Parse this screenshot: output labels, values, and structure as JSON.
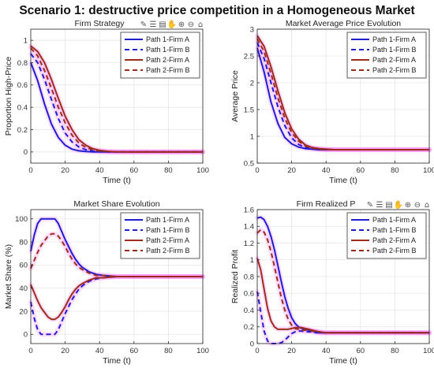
{
  "figure": {
    "suptitle": "Scenario 1: destructive price competition in a Homogeneous Market",
    "toolbar_icons": [
      "brush-icon",
      "datatip-icon",
      "rotate-icon",
      "pan-icon",
      "zoom-in-icon",
      "zoom-out-icon",
      "home-icon"
    ]
  },
  "colors": {
    "path1": "#1f1fd1",
    "path2": "#9b2d1a",
    "axis": "#262626",
    "grid": "#e6e6e6",
    "brush": "#ff66ff"
  },
  "chart_data": [
    {
      "id": "p1",
      "type": "line",
      "title": "Firm Strategy",
      "xlabel": "Time (t)",
      "ylabel": "Proportion High-Price",
      "xlim": [
        0,
        100
      ],
      "ylim": [
        -0.1,
        1.1
      ],
      "xticks": [
        0,
        20,
        40,
        60,
        80,
        100
      ],
      "xtick_labels": [
        "0",
        "20",
        "40",
        "60",
        "80",
        "100"
      ],
      "yticks": [
        0,
        0.2,
        0.4,
        0.6,
        0.8,
        1
      ],
      "ytick_labels": [
        "0",
        "0.2",
        "0.4",
        "0.6",
        "0.8",
        "1"
      ],
      "grid": true,
      "legend_position": "top-right",
      "toolbar": true,
      "series": [
        {
          "name": "Path 1-Firm A",
          "color": "path1",
          "dash": "solid",
          "x": [
            0,
            4,
            8,
            12,
            16,
            20,
            24,
            28,
            32,
            36,
            40,
            45,
            50,
            60,
            70,
            80,
            90,
            100
          ],
          "y": [
            0.8,
            0.64,
            0.43,
            0.25,
            0.13,
            0.06,
            0.025,
            0.01,
            0.004,
            0.001,
            0,
            0,
            0,
            0,
            0,
            0,
            0,
            0
          ]
        },
        {
          "name": "Path 1-Firm B",
          "color": "path1",
          "dash": "dashed",
          "x": [
            0,
            4,
            8,
            12,
            16,
            20,
            24,
            28,
            32,
            36,
            40,
            45,
            50,
            60,
            70,
            80,
            90,
            100
          ],
          "y": [
            0.88,
            0.8,
            0.65,
            0.47,
            0.3,
            0.17,
            0.09,
            0.045,
            0.02,
            0.009,
            0.004,
            0.001,
            0,
            0,
            0,
            0,
            0,
            0
          ]
        },
        {
          "name": "Path 2-Firm A",
          "color": "path2",
          "dash": "solid",
          "x": [
            0,
            4,
            8,
            12,
            16,
            20,
            24,
            28,
            32,
            36,
            40,
            45,
            50,
            60,
            70,
            80,
            90,
            100
          ],
          "y": [
            0.95,
            0.9,
            0.8,
            0.65,
            0.48,
            0.32,
            0.2,
            0.11,
            0.06,
            0.03,
            0.014,
            0.005,
            0.002,
            0,
            0,
            0,
            0,
            0
          ]
        },
        {
          "name": "Path 2-Firm B",
          "color": "path2",
          "dash": "dashed",
          "x": [
            0,
            4,
            8,
            12,
            16,
            20,
            24,
            28,
            32,
            36,
            40,
            45,
            50,
            60,
            70,
            80,
            90,
            100
          ],
          "y": [
            0.93,
            0.86,
            0.73,
            0.57,
            0.4,
            0.26,
            0.15,
            0.08,
            0.04,
            0.02,
            0.009,
            0.003,
            0.001,
            0,
            0,
            0,
            0,
            0
          ]
        }
      ]
    },
    {
      "id": "p2",
      "type": "line",
      "title": "Market Average Price Evolution",
      "xlabel": "Time (t)",
      "ylabel": "Average Price",
      "xlim": [
        0,
        100
      ],
      "ylim": [
        0.5,
        3
      ],
      "xticks": [
        0,
        20,
        40,
        60,
        80,
        100
      ],
      "xtick_labels": [
        "0",
        "20",
        "40",
        "60",
        "80",
        "100"
      ],
      "yticks": [
        0.5,
        1,
        1.5,
        2,
        2.5,
        3
      ],
      "ytick_labels": [
        "0.5",
        "1",
        "1.5",
        "2",
        "2.5",
        "3"
      ],
      "grid": true,
      "legend_position": "top-right",
      "toolbar": false,
      "series": [
        {
          "name": "Path 1-Firm A",
          "color": "path1",
          "dash": "solid",
          "x": [
            0,
            4,
            8,
            12,
            16,
            20,
            24,
            28,
            32,
            36,
            40,
            45,
            50,
            60,
            70,
            80,
            90,
            100
          ],
          "y": [
            2.65,
            2.2,
            1.64,
            1.24,
            0.98,
            0.86,
            0.8,
            0.77,
            0.76,
            0.75,
            0.75,
            0.75,
            0.75,
            0.75,
            0.75,
            0.75,
            0.75,
            0.75
          ]
        },
        {
          "name": "Path 1-Firm B",
          "color": "path1",
          "dash": "dashed",
          "x": [
            0,
            4,
            8,
            12,
            16,
            20,
            24,
            28,
            32,
            36,
            40,
            45,
            50,
            60,
            70,
            80,
            90,
            100
          ],
          "y": [
            2.75,
            2.45,
            2.0,
            1.55,
            1.2,
            0.97,
            0.85,
            0.79,
            0.77,
            0.76,
            0.75,
            0.75,
            0.75,
            0.75,
            0.75,
            0.75,
            0.75,
            0.75
          ]
        },
        {
          "name": "Path 2-Firm A",
          "color": "path2",
          "dash": "solid",
          "x": [
            0,
            4,
            8,
            12,
            16,
            20,
            24,
            28,
            32,
            36,
            40,
            45,
            50,
            60,
            70,
            80,
            90,
            100
          ],
          "y": [
            2.88,
            2.68,
            2.3,
            1.85,
            1.44,
            1.14,
            0.95,
            0.84,
            0.79,
            0.77,
            0.76,
            0.75,
            0.75,
            0.75,
            0.75,
            0.75,
            0.75,
            0.75
          ]
        },
        {
          "name": "Path 2-Firm B",
          "color": "path2",
          "dash": "dashed",
          "x": [
            0,
            4,
            8,
            12,
            16,
            20,
            24,
            28,
            32,
            36,
            40,
            45,
            50,
            60,
            70,
            80,
            90,
            100
          ],
          "y": [
            2.82,
            2.58,
            2.17,
            1.72,
            1.34,
            1.07,
            0.91,
            0.82,
            0.78,
            0.76,
            0.75,
            0.75,
            0.75,
            0.75,
            0.75,
            0.75,
            0.75,
            0.75
          ]
        }
      ]
    },
    {
      "id": "p3",
      "type": "line",
      "title": "Market Share Evolution",
      "xlabel": "Time (t)",
      "ylabel": "Market Share (%)",
      "xlim": [
        0,
        100
      ],
      "ylim": [
        -8,
        108
      ],
      "xticks": [
        0,
        20,
        40,
        60,
        80,
        100
      ],
      "xtick_labels": [
        "0",
        "20",
        "40",
        "60",
        "80",
        "100"
      ],
      "yticks": [
        0,
        20,
        40,
        60,
        80,
        100
      ],
      "ytick_labels": [
        "0",
        "20",
        "40",
        "60",
        "80",
        "100"
      ],
      "grid": true,
      "legend_position": "top-right",
      "toolbar": false,
      "series": [
        {
          "name": "Path 1-Firm A",
          "color": "path1",
          "dash": "solid",
          "x": [
            0,
            2,
            4,
            6,
            8,
            10,
            12,
            14,
            16,
            18,
            20,
            22,
            24,
            26,
            28,
            30,
            34,
            38,
            42,
            50,
            60,
            80,
            100
          ],
          "y": [
            72,
            86,
            96,
            100,
            100,
            100,
            100,
            100,
            96,
            89,
            82,
            76,
            70,
            65,
            61,
            58,
            54,
            52,
            51,
            50,
            50,
            50,
            50
          ]
        },
        {
          "name": "Path 1-Firm B",
          "color": "path1",
          "dash": "dashed",
          "x": [
            0,
            2,
            4,
            6,
            8,
            10,
            12,
            14,
            16,
            18,
            20,
            22,
            24,
            26,
            28,
            30,
            34,
            38,
            42,
            50,
            60,
            80,
            100
          ],
          "y": [
            28,
            14,
            4,
            0,
            0,
            0,
            0,
            0,
            4,
            11,
            18,
            24,
            30,
            35,
            39,
            42,
            46,
            48,
            49,
            50,
            50,
            50,
            50
          ]
        },
        {
          "name": "Path 2-Firm A",
          "color": "path2",
          "dash": "solid",
          "x": [
            0,
            2,
            4,
            6,
            8,
            10,
            12,
            14,
            16,
            18,
            20,
            22,
            24,
            26,
            28,
            30,
            34,
            38,
            42,
            50,
            60,
            80,
            100
          ],
          "y": [
            43,
            36,
            29,
            23,
            19,
            15,
            13,
            13,
            15,
            19,
            24,
            30,
            35,
            39,
            42,
            44,
            47,
            49,
            49,
            50,
            50,
            50,
            50
          ]
        },
        {
          "name": "Path 2-Firm B",
          "color": "path2",
          "dash": "dashed",
          "x": [
            0,
            2,
            4,
            6,
            8,
            10,
            12,
            14,
            16,
            18,
            20,
            22,
            24,
            26,
            28,
            30,
            34,
            38,
            42,
            50,
            60,
            80,
            100
          ],
          "y": [
            57,
            64,
            71,
            77,
            81,
            85,
            87,
            87,
            85,
            81,
            76,
            70,
            65,
            61,
            58,
            56,
            53,
            51,
            51,
            50,
            50,
            50,
            50
          ]
        }
      ]
    },
    {
      "id": "p4",
      "type": "line",
      "title": "Firm Realized P",
      "xlabel": "Time (t)",
      "ylabel": "Realized Profit",
      "xlim": [
        0,
        100
      ],
      "ylim": [
        0,
        1.6
      ],
      "xticks": [
        0,
        20,
        40,
        60,
        80,
        100
      ],
      "xtick_labels": [
        "0",
        "20",
        "40",
        "60",
        "80",
        "100"
      ],
      "yticks": [
        0,
        0.2,
        0.4,
        0.6,
        0.8,
        1,
        1.2,
        1.4,
        1.6
      ],
      "ytick_labels": [
        "0",
        "0.2",
        "0.4",
        "0.6",
        "0.8",
        "1",
        "1.2",
        "1.4",
        "1.6"
      ],
      "grid": true,
      "legend_position": "top-right",
      "toolbar": true,
      "series": [
        {
          "name": "Path 1-Firm A",
          "color": "path1",
          "dash": "solid",
          "x": [
            0,
            2,
            4,
            6,
            8,
            10,
            12,
            14,
            16,
            18,
            20,
            22,
            24,
            26,
            28,
            30,
            32,
            34,
            36,
            40,
            50,
            60,
            80,
            100
          ],
          "y": [
            1.5,
            1.51,
            1.48,
            1.4,
            1.28,
            1.12,
            0.93,
            0.74,
            0.56,
            0.42,
            0.31,
            0.24,
            0.2,
            0.18,
            0.17,
            0.16,
            0.15,
            0.14,
            0.13,
            0.13,
            0.13,
            0.13,
            0.13,
            0.13
          ]
        },
        {
          "name": "Path 1-Firm B",
          "color": "path1",
          "dash": "dashed",
          "x": [
            0,
            2,
            4,
            6,
            8,
            10,
            12,
            14,
            16,
            18,
            20,
            22,
            24,
            26,
            28,
            30,
            32,
            34,
            36,
            40,
            50,
            60,
            80,
            100
          ],
          "y": [
            0.62,
            0.38,
            0.15,
            0.03,
            0,
            0,
            0,
            0.01,
            0.04,
            0.08,
            0.12,
            0.14,
            0.15,
            0.15,
            0.14,
            0.14,
            0.14,
            0.13,
            0.13,
            0.13,
            0.13,
            0.13,
            0.13,
            0.13
          ]
        },
        {
          "name": "Path 2-Firm A",
          "color": "path2",
          "dash": "solid",
          "x": [
            0,
            2,
            4,
            6,
            8,
            10,
            12,
            14,
            16,
            18,
            20,
            22,
            24,
            26,
            28,
            30,
            32,
            34,
            36,
            40,
            50,
            60,
            80,
            100
          ],
          "y": [
            1.02,
            0.88,
            0.65,
            0.42,
            0.27,
            0.2,
            0.17,
            0.17,
            0.17,
            0.17,
            0.18,
            0.19,
            0.19,
            0.19,
            0.18,
            0.17,
            0.16,
            0.15,
            0.14,
            0.13,
            0.13,
            0.13,
            0.13,
            0.13
          ]
        },
        {
          "name": "Path 2-Firm B",
          "color": "path2",
          "dash": "dashed",
          "x": [
            0,
            2,
            4,
            6,
            8,
            10,
            12,
            14,
            16,
            18,
            20,
            22,
            24,
            26,
            28,
            30,
            32,
            34,
            36,
            40,
            50,
            60,
            80,
            100
          ],
          "y": [
            1.32,
            1.36,
            1.33,
            1.24,
            1.1,
            0.92,
            0.73,
            0.55,
            0.4,
            0.29,
            0.22,
            0.18,
            0.17,
            0.16,
            0.16,
            0.16,
            0.15,
            0.15,
            0.14,
            0.13,
            0.13,
            0.13,
            0.13,
            0.13
          ]
        }
      ]
    }
  ]
}
